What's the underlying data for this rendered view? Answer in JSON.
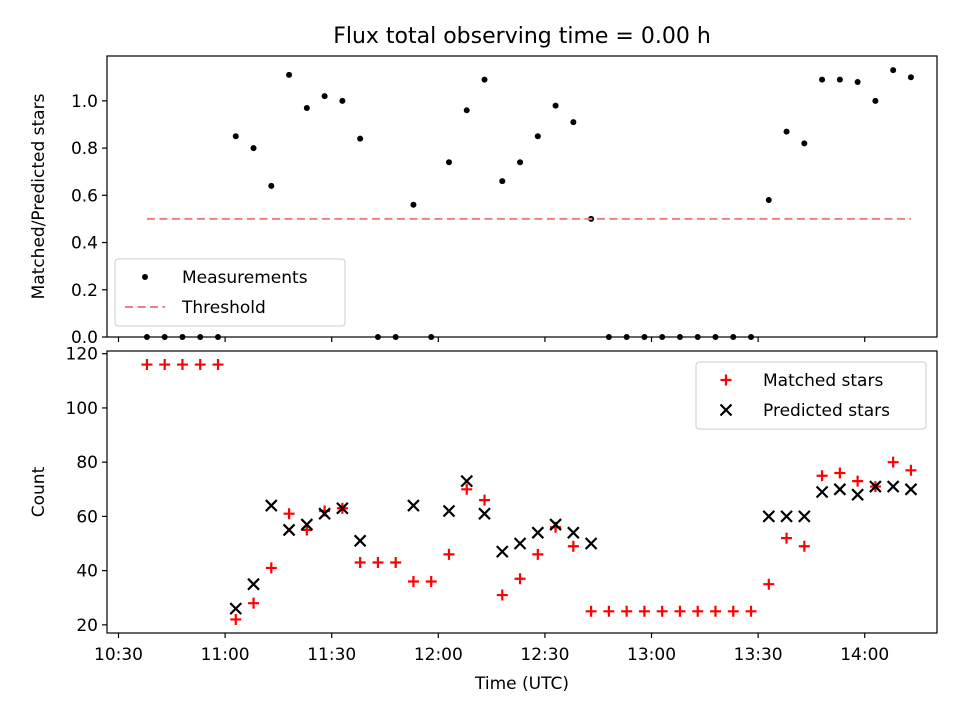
{
  "chart_data": [
    {
      "type": "scatter",
      "title": "Flux total observing time = 0.00 h",
      "ylabel": "Matched/Predicted stars",
      "xlabel": "",
      "ylim": [
        0,
        1.19
      ],
      "yticks": [
        "0.0",
        "0.2",
        "0.4",
        "0.6",
        "0.8",
        "1.0"
      ],
      "x_tick_labels": [
        "10:30",
        "11:00",
        "11:30",
        "12:00",
        "12:30",
        "13:00",
        "13:30",
        "14:00"
      ],
      "legend_position": "lower-left",
      "series": [
        {
          "name": "Measurements",
          "color": "#000000",
          "marker": "dot",
          "points": [
            [
              "10:38",
              0.0
            ],
            [
              "10:43",
              0.0
            ],
            [
              "10:48",
              0.0
            ],
            [
              "10:53",
              0.0
            ],
            [
              "10:58",
              0.0
            ],
            [
              "11:03",
              0.85
            ],
            [
              "11:08",
              0.8
            ],
            [
              "11:13",
              0.64
            ],
            [
              "11:18",
              1.11
            ],
            [
              "11:23",
              0.97
            ],
            [
              "11:28",
              1.02
            ],
            [
              "11:33",
              1.0
            ],
            [
              "11:38",
              0.84
            ],
            [
              "11:43",
              0.0
            ],
            [
              "11:48",
              0.0
            ],
            [
              "11:53",
              0.56
            ],
            [
              "11:58",
              0.0
            ],
            [
              "12:03",
              0.74
            ],
            [
              "12:08",
              0.96
            ],
            [
              "12:13",
              1.09
            ],
            [
              "12:18",
              0.66
            ],
            [
              "12:23",
              0.74
            ],
            [
              "12:28",
              0.85
            ],
            [
              "12:33",
              0.98
            ],
            [
              "12:38",
              0.91
            ],
            [
              "12:43",
              0.5
            ],
            [
              "12:48",
              0.0
            ],
            [
              "12:53",
              0.0
            ],
            [
              "12:58",
              0.0
            ],
            [
              "13:03",
              0.0
            ],
            [
              "13:08",
              0.0
            ],
            [
              "13:13",
              0.0
            ],
            [
              "13:18",
              0.0
            ],
            [
              "13:23",
              0.0
            ],
            [
              "13:28",
              0.0
            ],
            [
              "13:33",
              0.58
            ],
            [
              "13:38",
              0.87
            ],
            [
              "13:43",
              0.82
            ],
            [
              "13:48",
              1.09
            ],
            [
              "13:53",
              1.09
            ],
            [
              "13:58",
              1.08
            ],
            [
              "14:03",
              1.0
            ],
            [
              "14:08",
              1.13
            ],
            [
              "14:13",
              1.1
            ]
          ]
        },
        {
          "name": "Threshold",
          "color": "#f08080",
          "style": "dashed",
          "points": [
            [
              "10:38",
              0.5
            ],
            [
              "14:13",
              0.5
            ]
          ]
        }
      ]
    },
    {
      "type": "scatter",
      "title": "",
      "ylabel": "Count",
      "xlabel": "Time (UTC)",
      "ylim": [
        17,
        121
      ],
      "yticks": [
        "20",
        "40",
        "60",
        "80",
        "100",
        "120"
      ],
      "x_tick_labels": [
        "10:30",
        "11:00",
        "11:30",
        "12:00",
        "12:30",
        "13:00",
        "13:30",
        "14:00"
      ],
      "legend_position": "upper-right",
      "series": [
        {
          "name": "Matched stars",
          "color": "#ff0000",
          "marker": "plus",
          "points": [
            [
              "10:38",
              116
            ],
            [
              "10:43",
              116
            ],
            [
              "10:48",
              116
            ],
            [
              "10:53",
              116
            ],
            [
              "10:58",
              116
            ],
            [
              "11:03",
              22
            ],
            [
              "11:08",
              28
            ],
            [
              "11:13",
              41
            ],
            [
              "11:18",
              61
            ],
            [
              "11:23",
              55
            ],
            [
              "11:28",
              62
            ],
            [
              "11:33",
              63
            ],
            [
              "11:38",
              43
            ],
            [
              "11:43",
              43
            ],
            [
              "11:48",
              43
            ],
            [
              "11:53",
              36
            ],
            [
              "11:58",
              36
            ],
            [
              "12:03",
              46
            ],
            [
              "12:08",
              70
            ],
            [
              "12:13",
              66
            ],
            [
              "12:18",
              31
            ],
            [
              "12:23",
              37
            ],
            [
              "12:28",
              46
            ],
            [
              "12:33",
              56
            ],
            [
              "12:38",
              49
            ],
            [
              "12:43",
              25
            ],
            [
              "12:48",
              25
            ],
            [
              "12:53",
              25
            ],
            [
              "12:58",
              25
            ],
            [
              "13:03",
              25
            ],
            [
              "13:08",
              25
            ],
            [
              "13:13",
              25
            ],
            [
              "13:18",
              25
            ],
            [
              "13:23",
              25
            ],
            [
              "13:28",
              25
            ],
            [
              "13:33",
              35
            ],
            [
              "13:38",
              52
            ],
            [
              "13:43",
              49
            ],
            [
              "13:48",
              75
            ],
            [
              "13:53",
              76
            ],
            [
              "13:58",
              73
            ],
            [
              "14:03",
              71
            ],
            [
              "14:08",
              80
            ],
            [
              "14:13",
              77
            ]
          ]
        },
        {
          "name": "Predicted stars",
          "color": "#000000",
          "marker": "x",
          "points": [
            [
              "11:03",
              26
            ],
            [
              "11:08",
              35
            ],
            [
              "11:13",
              64
            ],
            [
              "11:18",
              55
            ],
            [
              "11:23",
              57
            ],
            [
              "11:28",
              61
            ],
            [
              "11:33",
              63
            ],
            [
              "11:38",
              51
            ],
            [
              "11:53",
              64
            ],
            [
              "12:03",
              62
            ],
            [
              "12:08",
              73
            ],
            [
              "12:13",
              61
            ],
            [
              "12:18",
              47
            ],
            [
              "12:23",
              50
            ],
            [
              "12:28",
              54
            ],
            [
              "12:33",
              57
            ],
            [
              "12:38",
              54
            ],
            [
              "12:43",
              50
            ],
            [
              "13:33",
              60
            ],
            [
              "13:38",
              60
            ],
            [
              "13:43",
              60
            ],
            [
              "13:48",
              69
            ],
            [
              "13:53",
              70
            ],
            [
              "13:58",
              68
            ],
            [
              "14:03",
              71
            ],
            [
              "14:08",
              71
            ],
            [
              "14:13",
              70
            ]
          ]
        }
      ]
    }
  ]
}
